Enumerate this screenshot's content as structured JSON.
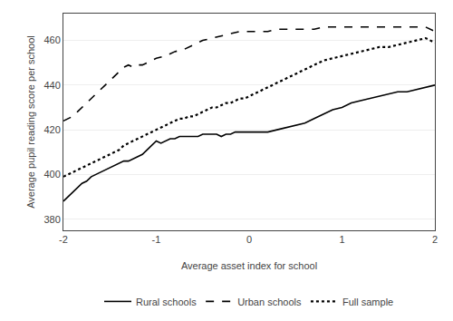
{
  "chart_data": {
    "type": "line",
    "xlabel": "Average asset index for school",
    "ylabel": "Average pupil reading score per school",
    "xlim": [
      -2,
      2
    ],
    "ylim": [
      375,
      472
    ],
    "xticks": [
      -2,
      -1,
      0,
      1,
      2
    ],
    "yticks": [
      380,
      400,
      420,
      440,
      460
    ],
    "grid": true,
    "legend": "bottom",
    "series": [
      {
        "name": "Rural schools",
        "color": "#000000",
        "line_style": "solid",
        "x": [
          -2.0,
          -1.95,
          -1.9,
          -1.85,
          -1.8,
          -1.75,
          -1.7,
          -1.65,
          -1.6,
          -1.55,
          -1.5,
          -1.45,
          -1.4,
          -1.35,
          -1.3,
          -1.25,
          -1.2,
          -1.15,
          -1.1,
          -1.05,
          -1.0,
          -0.95,
          -0.9,
          -0.85,
          -0.8,
          -0.75,
          -0.7,
          -0.65,
          -0.6,
          -0.55,
          -0.5,
          -0.45,
          -0.4,
          -0.35,
          -0.3,
          -0.25,
          -0.2,
          -0.15,
          -0.1,
          -0.05,
          0.0,
          0.1,
          0.2,
          0.3,
          0.4,
          0.5,
          0.6,
          0.7,
          0.8,
          0.9,
          1.0,
          1.1,
          1.2,
          1.3,
          1.4,
          1.5,
          1.6,
          1.7,
          1.8,
          1.9,
          2.0
        ],
        "values": [
          388,
          390,
          392,
          394,
          396,
          397,
          399,
          400,
          401,
          402,
          403,
          404,
          405,
          406,
          406,
          407,
          408,
          409,
          411,
          413,
          415,
          414,
          415,
          416,
          416,
          417,
          417,
          417,
          417,
          417,
          418,
          418,
          418,
          418,
          417,
          418,
          418,
          419,
          419,
          419,
          419,
          419,
          419,
          420,
          421,
          422,
          423,
          425,
          427,
          429,
          430,
          432,
          433,
          434,
          435,
          436,
          437,
          437,
          438,
          439,
          440
        ]
      },
      {
        "name": "Urban schools",
        "color": "#000000",
        "line_style": "dashed",
        "x": [
          -2.0,
          -1.9,
          -1.85,
          -1.8,
          -1.75,
          -1.7,
          -1.65,
          -1.6,
          -1.55,
          -1.5,
          -1.45,
          -1.4,
          -1.35,
          -1.3,
          -1.25,
          -1.2,
          -1.15,
          -1.1,
          -1.05,
          -1.0,
          -0.9,
          -0.8,
          -0.7,
          -0.6,
          -0.5,
          -0.4,
          -0.3,
          -0.2,
          -0.1,
          0.0,
          0.1,
          0.2,
          0.3,
          0.4,
          0.5,
          0.6,
          0.7,
          0.8,
          0.9,
          1.0,
          1.1,
          1.2,
          1.3,
          1.4,
          1.5,
          1.6,
          1.7,
          1.8,
          1.9,
          2.0
        ],
        "values": [
          424,
          426,
          428,
          430,
          432,
          434,
          436,
          438,
          440,
          442,
          444,
          446,
          448,
          449,
          448,
          449,
          449,
          450,
          451,
          452,
          453,
          455,
          456,
          458,
          460,
          461,
          462,
          463,
          464,
          464,
          464,
          464,
          465,
          465,
          465,
          465,
          465,
          466,
          466,
          466,
          466,
          466,
          466,
          466,
          466,
          466,
          466,
          466,
          466,
          464
        ]
      },
      {
        "name": "Full sample",
        "color": "#000000",
        "line_style": "dotted",
        "x": [
          -2.0,
          -1.95,
          -1.9,
          -1.85,
          -1.8,
          -1.75,
          -1.7,
          -1.65,
          -1.6,
          -1.55,
          -1.5,
          -1.45,
          -1.4,
          -1.35,
          -1.3,
          -1.25,
          -1.2,
          -1.15,
          -1.1,
          -1.05,
          -1.0,
          -0.95,
          -0.9,
          -0.85,
          -0.8,
          -0.75,
          -0.7,
          -0.65,
          -0.6,
          -0.55,
          -0.5,
          -0.45,
          -0.4,
          -0.35,
          -0.3,
          -0.25,
          -0.2,
          -0.15,
          -0.1,
          -0.05,
          0.0,
          0.1,
          0.2,
          0.3,
          0.4,
          0.5,
          0.6,
          0.7,
          0.8,
          0.9,
          1.0,
          1.1,
          1.2,
          1.3,
          1.4,
          1.5,
          1.6,
          1.7,
          1.8,
          1.9,
          2.0
        ],
        "values": [
          399,
          400,
          401,
          402,
          403,
          404,
          405,
          406,
          407,
          408,
          409,
          410,
          411,
          413,
          414,
          415,
          416,
          417,
          418,
          419,
          420,
          421,
          422,
          423,
          424,
          425,
          425,
          426,
          426,
          427,
          428,
          429,
          430,
          430,
          431,
          432,
          432,
          433,
          434,
          434,
          435,
          437,
          439,
          441,
          443,
          445,
          447,
          449,
          451,
          452,
          453,
          454,
          455,
          456,
          457,
          457,
          458,
          459,
          460,
          461,
          459
        ]
      }
    ]
  }
}
